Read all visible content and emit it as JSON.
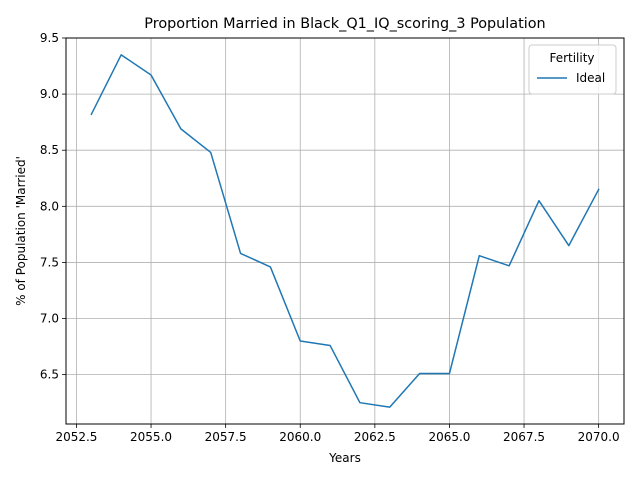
{
  "chart_data": {
    "type": "line",
    "title": "Proportion Married in Black_Q1_IQ_scoring_3 Population",
    "xlabel": "Years",
    "ylabel": "% of Population 'Married'",
    "xlim": [
      2052.15,
      2070.85
    ],
    "ylim": [
      6.06,
      9.5
    ],
    "xticks": [
      2052.5,
      2055.0,
      2057.5,
      2060.0,
      2062.5,
      2065.0,
      2067.5,
      2070.0
    ],
    "xtick_labels": [
      "2052.5",
      "2055.0",
      "2057.5",
      "2060.0",
      "2062.5",
      "2065.0",
      "2067.5",
      "2070.0"
    ],
    "yticks": [
      6.5,
      7.0,
      7.5,
      8.0,
      8.5,
      9.0,
      9.5
    ],
    "ytick_labels": [
      "6.5",
      "7.0",
      "7.5",
      "8.0",
      "8.5",
      "9.0",
      "9.5"
    ],
    "grid": true,
    "legend": {
      "title": "Fertility",
      "position": "upper right"
    },
    "series": [
      {
        "name": "Ideal",
        "color": "#1f77b4",
        "x": [
          2053,
          2054,
          2055,
          2056,
          2057,
          2058,
          2059,
          2060,
          2061,
          2062,
          2063,
          2064,
          2065,
          2066,
          2067,
          2068,
          2069,
          2070
        ],
        "y": [
          8.82,
          9.35,
          9.17,
          8.69,
          8.48,
          7.58,
          7.46,
          6.8,
          6.76,
          6.25,
          6.21,
          6.51,
          6.51,
          7.56,
          7.47,
          8.05,
          7.65,
          8.15
        ]
      }
    ]
  }
}
